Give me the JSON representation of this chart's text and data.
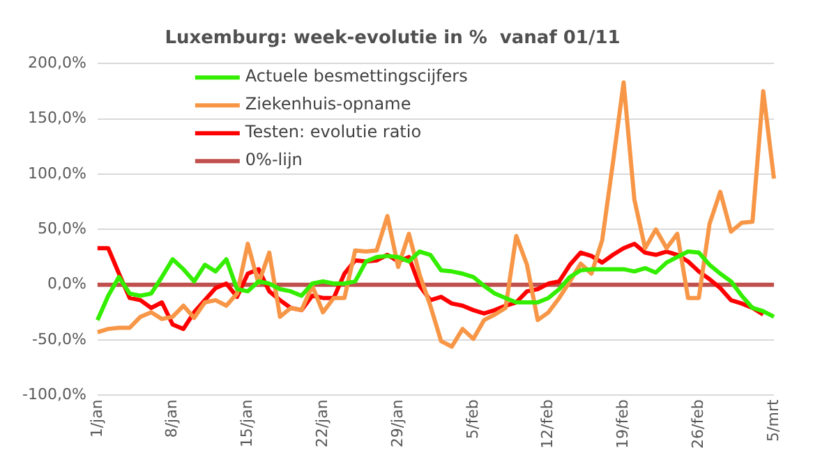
{
  "chart_data": {
    "type": "line",
    "title": "Luxemburg: week-evolutie in %  vanaf 01/11",
    "categories": [
      "1/jan",
      null,
      null,
      null,
      null,
      null,
      null,
      "8/jan",
      null,
      null,
      null,
      null,
      null,
      null,
      "15/jan",
      null,
      null,
      null,
      null,
      null,
      null,
      "22/jan",
      null,
      null,
      null,
      null,
      null,
      null,
      "29/jan",
      null,
      null,
      null,
      null,
      null,
      null,
      "5/feb",
      null,
      null,
      null,
      null,
      null,
      null,
      "12/feb",
      null,
      null,
      null,
      null,
      null,
      null,
      "19/feb",
      null,
      null,
      null,
      null,
      null,
      null,
      "26/feb",
      null,
      null,
      null,
      null,
      null,
      null,
      "5/mrt"
    ],
    "series": [
      {
        "name": "Actuele besmettingscijfers",
        "color": "#33ee00",
        "values": [
          -32,
          -10,
          7,
          -8,
          -10,
          -8,
          7,
          23,
          14,
          3,
          18,
          12,
          23,
          -4,
          -6,
          3,
          1,
          -4,
          -6,
          -10,
          1,
          3,
          1,
          1,
          3,
          21,
          25,
          26,
          25,
          21,
          30,
          27,
          13,
          12,
          10,
          7,
          -1,
          -8,
          -12,
          -16,
          -16,
          -16,
          -12,
          -4,
          7,
          13,
          14,
          14,
          14,
          14,
          12,
          15,
          11,
          20,
          25,
          30,
          29,
          18,
          10,
          3,
          -10,
          -21,
          -24,
          -29
        ]
      },
      {
        "name": "Ziekenhuis-opname",
        "color": "#f79646",
        "values": [
          -43,
          -40,
          -39,
          -39,
          -29,
          -25,
          -31,
          -29,
          -19,
          -30,
          -16,
          -14,
          -19,
          -8,
          37,
          1,
          29,
          -29,
          -21,
          -23,
          -1,
          -25,
          -12,
          -12,
          31,
          30,
          31,
          62,
          16,
          46,
          9,
          -19,
          -51,
          -56,
          -40,
          -49,
          -32,
          -27,
          -21,
          44,
          18,
          -32,
          -25,
          -12,
          3,
          19,
          10,
          40,
          110,
          183,
          77,
          33,
          50,
          33,
          46,
          -12,
          -12,
          55,
          84,
          48,
          56,
          57,
          175,
          96
        ]
      },
      {
        "name": "Testen: evolutie ratio",
        "color": "#ff0000",
        "values": [
          33,
          33,
          10,
          -12,
          -14,
          -21,
          -16,
          -36,
          -40,
          -25,
          -14,
          -3,
          1,
          -11,
          10,
          14,
          -6,
          -14,
          -21,
          -23,
          -10,
          -12,
          -12,
          10,
          22,
          21,
          22,
          27,
          21,
          25,
          -1,
          -14,
          -11,
          -17,
          -19,
          -23,
          -26,
          -23,
          -19,
          -16,
          -6,
          -4,
          1,
          3,
          18,
          29,
          26,
          20,
          27,
          33,
          37,
          29,
          27,
          30,
          27,
          21,
          12,
          5,
          -3,
          -14,
          -17,
          -21,
          -27,
          null
        ]
      },
      {
        "name": "0%-lijn",
        "color": "#c0504d",
        "values": [
          0,
          0,
          0,
          0,
          0,
          0,
          0,
          0,
          0,
          0,
          0,
          0,
          0,
          0,
          0,
          0,
          0,
          0,
          0,
          0,
          0,
          0,
          0,
          0,
          0,
          0,
          0,
          0,
          0,
          0,
          0,
          0,
          0,
          0,
          0,
          0,
          0,
          0,
          0,
          0,
          0,
          0,
          0,
          0,
          0,
          0,
          0,
          0,
          0,
          0,
          0,
          0,
          0,
          0,
          0,
          0,
          0,
          0,
          0,
          0,
          0,
          0,
          0,
          0
        ]
      }
    ],
    "ylim": [
      -100,
      200
    ],
    "yticks": [
      {
        "value": -100,
        "label": "-100,0%"
      },
      {
        "value": -50,
        "label": "-50,0%"
      },
      {
        "value": 0,
        "label": "0,0%"
      },
      {
        "value": 50,
        "label": "50,0%"
      },
      {
        "value": 100,
        "label": "100,0%"
      },
      {
        "value": 150,
        "label": "150,0%"
      },
      {
        "value": 200,
        "label": "200,0%"
      }
    ],
    "grid": "y",
    "legend": "top left",
    "marker": "none",
    "line_style": "solid"
  }
}
